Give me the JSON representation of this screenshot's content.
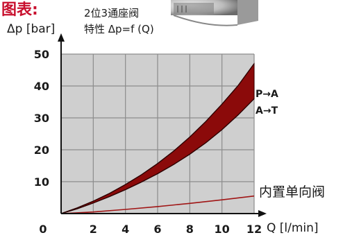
{
  "header": {
    "title": "图表:",
    "caption_line1": "2位3通座阀",
    "caption_line2": "特性 Δp=f (Q)"
  },
  "chart_data": {
    "type": "area",
    "title": "图表:",
    "subtitle": "2位3通座阀 特性 Δp=f (Q)",
    "xlabel": "Q [l/min]",
    "ylabel": "Δp [bar]",
    "xlim": [
      0,
      12
    ],
    "ylim": [
      0,
      50
    ],
    "x_ticks": [
      "0",
      "2",
      "4",
      "6",
      "8",
      "10",
      "12"
    ],
    "y_ticks": [
      "10",
      "20",
      "30",
      "40",
      "50"
    ],
    "grid": true,
    "grid_color": "#8c8c8c",
    "plot_background": "#cfcfcf",
    "series": [
      {
        "name": "P→A",
        "role": "band_upper",
        "color": "#8b0a0a",
        "points": [
          [
            0,
            0
          ],
          [
            1,
            1.8
          ],
          [
            2,
            3.9
          ],
          [
            3,
            6.3
          ],
          [
            4,
            9.1
          ],
          [
            5,
            12.2
          ],
          [
            6,
            15.7
          ],
          [
            7,
            19.6
          ],
          [
            8,
            24.0
          ],
          [
            9,
            28.9
          ],
          [
            10,
            34.3
          ],
          [
            11,
            40.1
          ],
          [
            12,
            47.0
          ]
        ]
      },
      {
        "name": "A→T",
        "role": "band_lower",
        "color": "#8b0a0a",
        "points": [
          [
            0,
            0
          ],
          [
            1,
            1.5
          ],
          [
            2,
            3.3
          ],
          [
            3,
            5.3
          ],
          [
            4,
            7.5
          ],
          [
            5,
            9.9
          ],
          [
            6,
            12.5
          ],
          [
            7,
            15.4
          ],
          [
            8,
            18.6
          ],
          [
            9,
            22.2
          ],
          [
            10,
            26.3
          ],
          [
            11,
            30.9
          ],
          [
            12,
            36.0
          ]
        ]
      },
      {
        "name": "内置单向阀",
        "role": "line",
        "color": "#a01515",
        "points": [
          [
            0,
            0
          ],
          [
            2,
            0.5
          ],
          [
            4,
            1.3
          ],
          [
            6,
            2.2
          ],
          [
            8,
            3.2
          ],
          [
            10,
            4.3
          ],
          [
            12,
            5.5
          ]
        ]
      }
    ]
  }
}
